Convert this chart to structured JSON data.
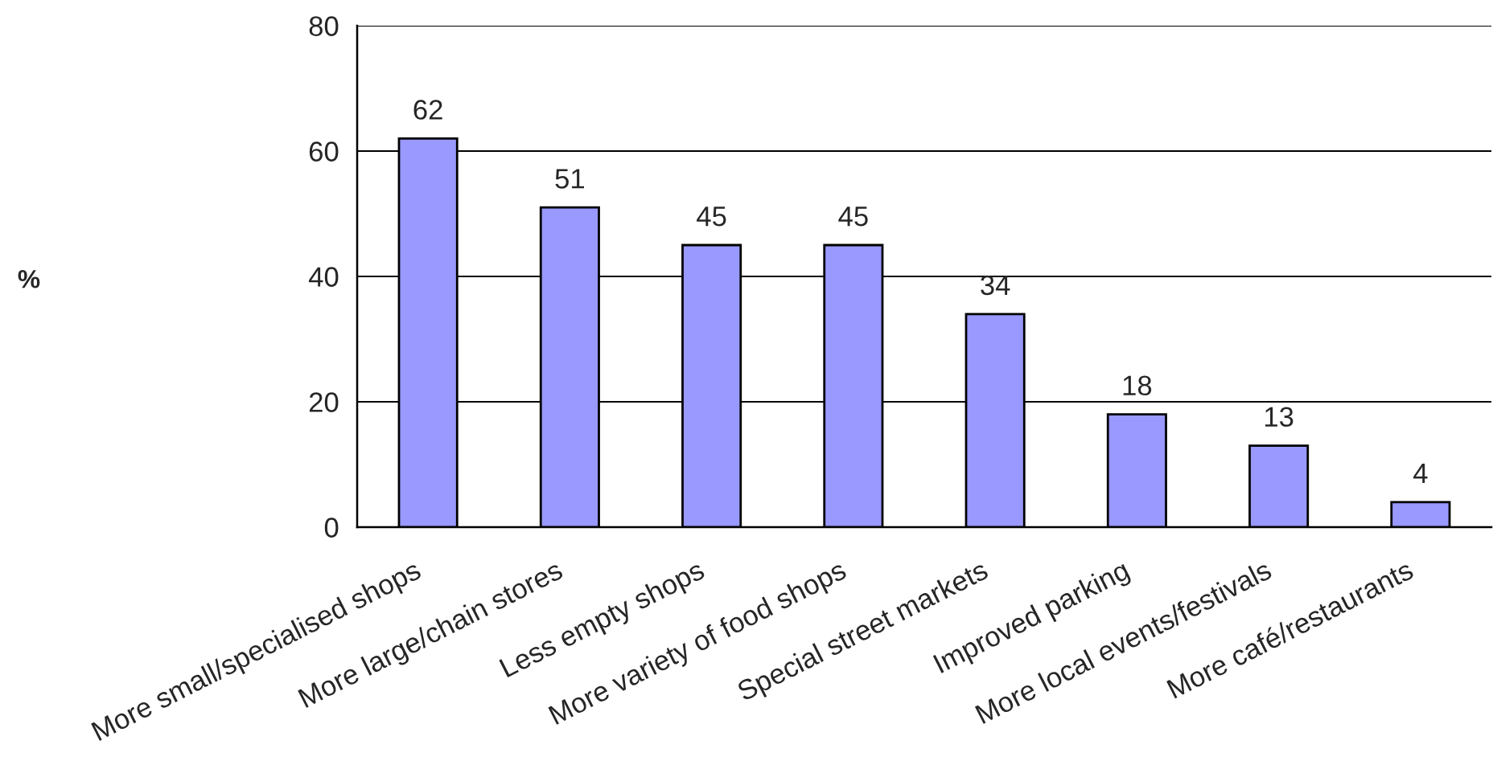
{
  "chart_data": {
    "type": "bar",
    "ylabel": "%",
    "categories": [
      "More small/specialised shops",
      "More large/chain stores",
      "Less empty shops",
      "More variety of food shops",
      "Special street markets",
      "Improved parking",
      "More local events/festivals",
      "More café/restaurants"
    ],
    "values": [
      62,
      51,
      45,
      45,
      34,
      18,
      13,
      4
    ],
    "color": "#9999ff",
    "ylim": [
      0,
      80
    ],
    "yticks": [
      0,
      20,
      40,
      60,
      80
    ],
    "grid": "y",
    "data_labels": true
  }
}
